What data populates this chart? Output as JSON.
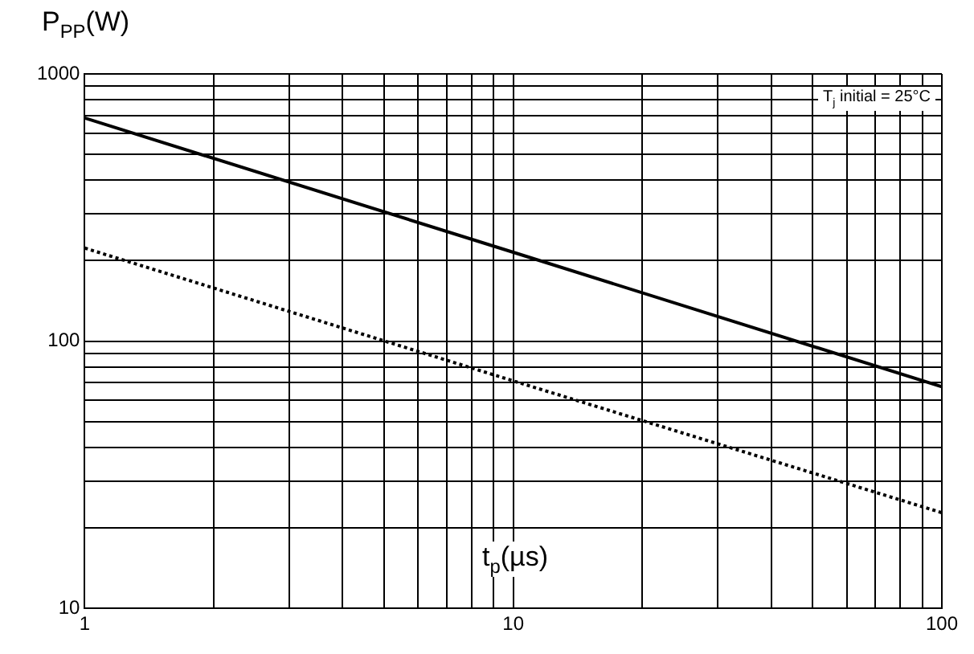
{
  "chart_data": {
    "type": "line",
    "ylabel": "P$_{PP}$(W)",
    "xlabel": "t$_{p}$(µs)",
    "annotations": [
      "T$_{j}$ initial = 25°C"
    ],
    "x": [
      1,
      10,
      100
    ],
    "series": [
      {
        "color": "#000000",
        "values": [
          684,
          215,
          67.5
        ],
        "line_style": "solid"
      },
      {
        "color": "#000000",
        "values": [
          223,
          71,
          22.8
        ],
        "line_style": "dotted"
      }
    ],
    "log": "xy",
    "xlim": [
      1,
      100
    ],
    "ylim": [
      10,
      1000
    ],
    "xticks": [
      1,
      {
        "value": 2,
        "label": null
      },
      {
        "value": 3,
        "label": null
      },
      {
        "value": 4,
        "label": null
      },
      {
        "value": 5,
        "label": null
      },
      {
        "value": 6,
        "label": null
      },
      {
        "value": 7,
        "label": null
      },
      {
        "value": 8,
        "label": null
      },
      {
        "value": 9,
        "label": null
      },
      10,
      {
        "value": 20,
        "label": null
      },
      {
        "value": 30,
        "label": null
      },
      {
        "value": 40,
        "label": null
      },
      {
        "value": 50,
        "label": null
      },
      {
        "value": 60,
        "label": null
      },
      {
        "value": 70,
        "label": null
      },
      {
        "value": 80,
        "label": null
      },
      {
        "value": 90,
        "label": null
      },
      100
    ],
    "yticks": [
      10,
      {
        "value": 20,
        "label": null
      },
      {
        "value": 30,
        "label": null
      },
      {
        "value": 40,
        "label": null
      },
      {
        "value": 50,
        "label": null
      },
      {
        "value": 60,
        "label": null
      },
      {
        "value": 70,
        "label": null
      },
      {
        "value": 80,
        "label": null
      },
      {
        "value": 90,
        "label": null
      },
      100,
      {
        "value": 200,
        "label": null
      },
      {
        "value": 300,
        "label": null
      },
      {
        "value": 400,
        "label": null
      },
      {
        "value": 500,
        "label": null
      },
      {
        "value": 600,
        "label": null
      },
      {
        "value": 700,
        "label": null
      },
      {
        "value": 800,
        "label": null
      },
      {
        "value": 900,
        "label": null
      },
      1000
    ],
    "grid": true,
    "legend": false,
    "marker": "none"
  }
}
